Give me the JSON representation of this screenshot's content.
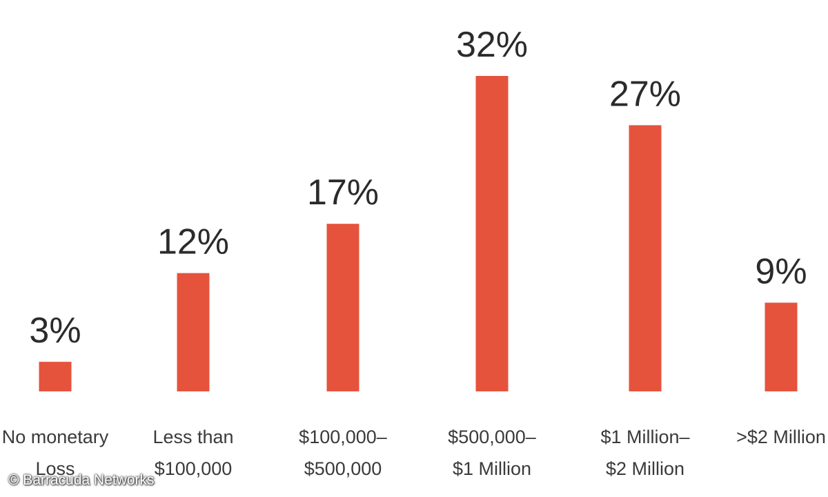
{
  "chart_data": {
    "type": "bar",
    "categories": [
      [
        "No monetary",
        "Loss"
      ],
      [
        "Less than",
        "$100,000"
      ],
      [
        "$100,000–",
        "$500,000"
      ],
      [
        "$500,000–",
        "$1 Million"
      ],
      [
        "$1 Million–",
        "$2 Million"
      ],
      [
        ">$2 Million"
      ]
    ],
    "values": [
      3,
      12,
      17,
      32,
      27,
      9
    ],
    "value_labels": [
      "3%",
      "12%",
      "17%",
      "32%",
      "27%",
      "9%"
    ],
    "unit": "%",
    "title": "",
    "xlabel": "",
    "ylabel": "",
    "ylim": [
      0,
      32
    ],
    "grid": false,
    "legend": "none",
    "bar_color": "#e5533d"
  },
  "credit": "© Barracuda Networks"
}
